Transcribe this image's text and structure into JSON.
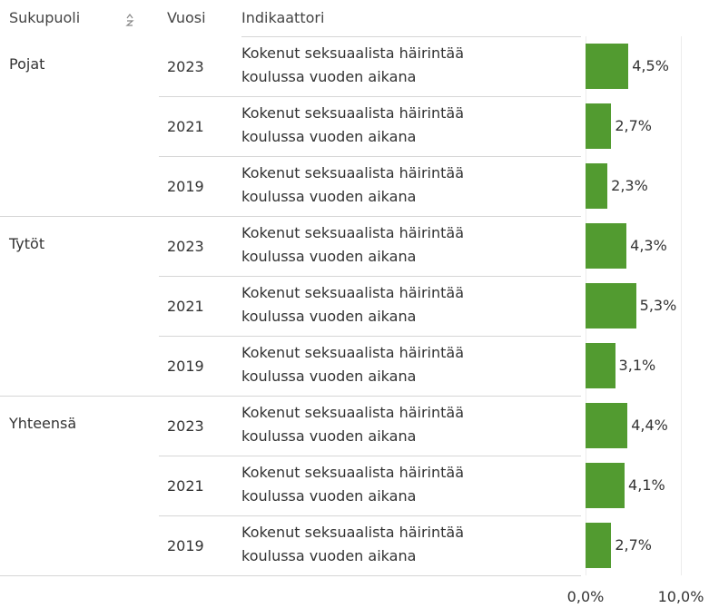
{
  "chart_data": {
    "type": "bar",
    "headers": [
      "Sukupuoli",
      "Vuosi",
      "Indikaattori"
    ],
    "groups": [
      "Pojat",
      "Tytöt",
      "Yhteensä"
    ],
    "years": [
      "2023",
      "2021",
      "2019",
      "2023",
      "2021",
      "2019",
      "2023",
      "2021",
      "2019"
    ],
    "indicators": [
      "Kokenut seksuaalista häirintää koulussa vuoden aikana",
      "Kokenut seksuaalista häirintää koulussa vuoden aikana",
      "Kokenut seksuaalista häirintää koulussa vuoden aikana",
      "Kokenut seksuaalista häirintää koulussa vuoden aikana",
      "Kokenut seksuaalista häirintää koulussa vuoden aikana",
      "Kokenut seksuaalista häirintää koulussa vuoden aikana",
      "Kokenut seksuaalista häirintää koulussa vuoden aikana",
      "Kokenut seksuaalista häirintää koulussa vuoden aikana",
      "Kokenut seksuaalista häirintää koulussa vuoden aikana"
    ],
    "values": [
      4.5,
      2.7,
      2.3,
      4.3,
      5.3,
      3.1,
      4.4,
      4.1,
      2.7
    ],
    "value_labels": [
      "4,5%",
      "2,7%",
      "2,3%",
      "4,3%",
      "5,3%",
      "3,1%",
      "4,4%",
      "4,1%",
      "2,7%"
    ],
    "color": "#529b30",
    "xlim": [
      0,
      12.5
    ],
    "xticks": [
      {
        "value": 0,
        "label": "0,0%"
      },
      {
        "value": 10,
        "label": "10,0%"
      }
    ],
    "grid": true
  }
}
